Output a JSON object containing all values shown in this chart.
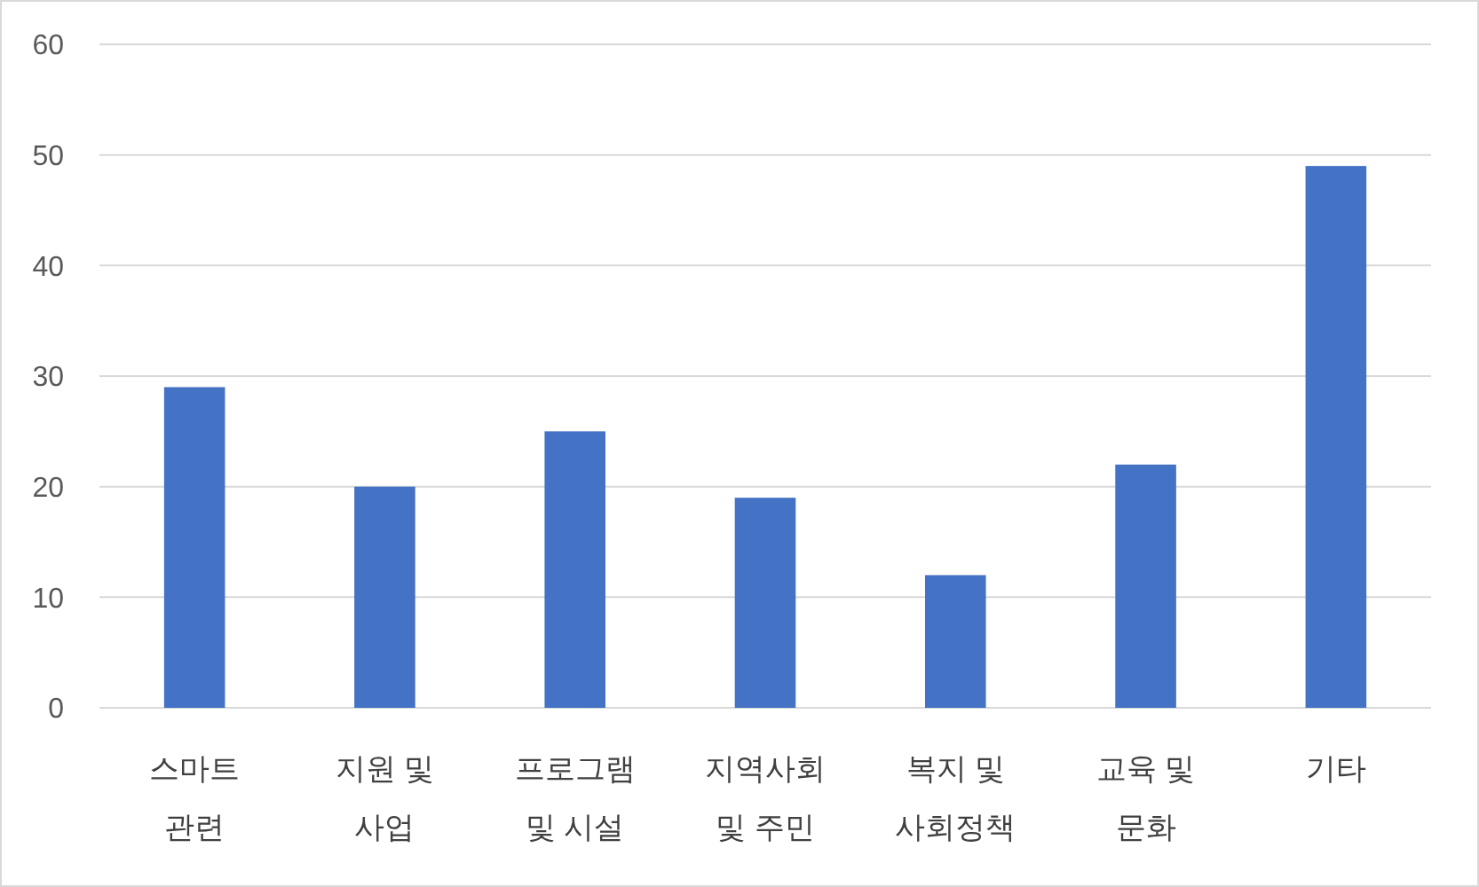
{
  "chart_data": {
    "type": "bar",
    "categories": [
      "스마트\n관련",
      "지원 및\n사업",
      "프로그램\n및 시설",
      "지역사회\n및 주민",
      "복지 및\n사회정책",
      "교육 및\n문화",
      "기타"
    ],
    "values": [
      29,
      20,
      25,
      19,
      12,
      22,
      49
    ],
    "color": "#4472c4",
    "ylim": [
      0,
      60
    ],
    "yticks": [
      0,
      10,
      20,
      30,
      40,
      50,
      60
    ],
    "grid": "y"
  }
}
